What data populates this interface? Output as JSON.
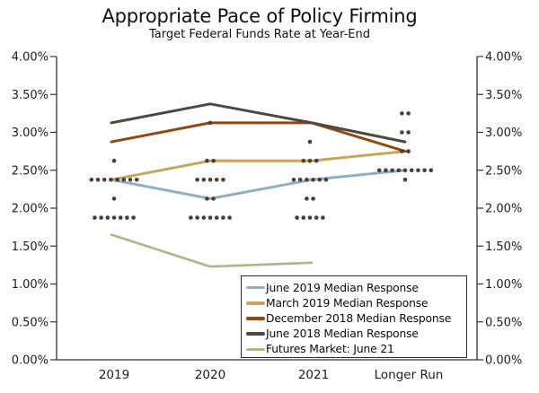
{
  "chart_data": {
    "type": "line",
    "title": "Appropriate Pace of Policy Firming",
    "subtitle": "Target Federal Funds Rate at Year-End",
    "categories": [
      "2019",
      "2020",
      "2021",
      "Longer Run"
    ],
    "ylim": [
      0,
      4
    ],
    "grid": false,
    "legend_position": "bottom-right-inside",
    "y_ticks": [
      {
        "value": 4.0,
        "label": "4.00%"
      },
      {
        "value": 3.5,
        "label": "3.50%"
      },
      {
        "value": 3.0,
        "label": "3.00%"
      },
      {
        "value": 2.5,
        "label": "2.50%"
      },
      {
        "value": 2.0,
        "label": "2.00%"
      },
      {
        "value": 1.5,
        "label": "1.50%"
      },
      {
        "value": 1.0,
        "label": "1.00%"
      },
      {
        "value": 0.5,
        "label": "0.50%"
      },
      {
        "value": 0.0,
        "label": "0.00%"
      }
    ],
    "series": [
      {
        "name": "June 2019 Median Response",
        "color": "#8fafc4",
        "values": [
          2.375,
          2.125,
          2.375,
          2.5
        ]
      },
      {
        "name": "March 2019 Median Response",
        "color": "#c8a45c",
        "values": [
          2.375,
          2.625,
          2.625,
          2.75
        ]
      },
      {
        "name": "December 2018 Median Response",
        "color": "#8e4a10",
        "values": [
          2.875,
          3.125,
          3.125,
          2.75
        ]
      },
      {
        "name": "June 2018 Median Response",
        "color": "#4e4840",
        "values": [
          3.125,
          3.375,
          3.125,
          2.875
        ]
      },
      {
        "name": "Futures Market: June 21",
        "color": "#afb789",
        "values": [
          1.65,
          1.23,
          1.28,
          null
        ]
      }
    ],
    "scatter": {
      "name": "individual-response-dots",
      "color": "#4a3f37",
      "points": [
        {
          "category": "2019",
          "rate": 2.625,
          "count": 1
        },
        {
          "category": "2019",
          "rate": 2.375,
          "count": 8
        },
        {
          "category": "2019",
          "rate": 2.125,
          "count": 1
        },
        {
          "category": "2019",
          "rate": 1.875,
          "count": 7
        },
        {
          "category": "2020",
          "rate": 3.125,
          "count": 1
        },
        {
          "category": "2020",
          "rate": 2.625,
          "count": 2
        },
        {
          "category": "2020",
          "rate": 2.375,
          "count": 5
        },
        {
          "category": "2020",
          "rate": 2.125,
          "count": 2
        },
        {
          "category": "2020",
          "rate": 1.875,
          "count": 7
        },
        {
          "category": "2021",
          "rate": 2.875,
          "count": 1
        },
        {
          "category": "2021",
          "rate": 2.625,
          "count": 3
        },
        {
          "category": "2021",
          "rate": 2.375,
          "count": 6
        },
        {
          "category": "2021",
          "rate": 2.125,
          "count": 2
        },
        {
          "category": "2021",
          "rate": 1.875,
          "count": 5
        },
        {
          "category": "Longer Run",
          "rate": 3.25,
          "count": 2
        },
        {
          "category": "Longer Run",
          "rate": 3.0,
          "count": 2
        },
        {
          "category": "Longer Run",
          "rate": 2.75,
          "count": 2
        },
        {
          "category": "Longer Run",
          "rate": 2.5,
          "count": 9
        },
        {
          "category": "Longer Run",
          "rate": 2.375,
          "count": 1
        }
      ]
    },
    "colors": {
      "axis": "#333333",
      "tick_text": "#1b1b26",
      "background": "#ffffff"
    }
  }
}
